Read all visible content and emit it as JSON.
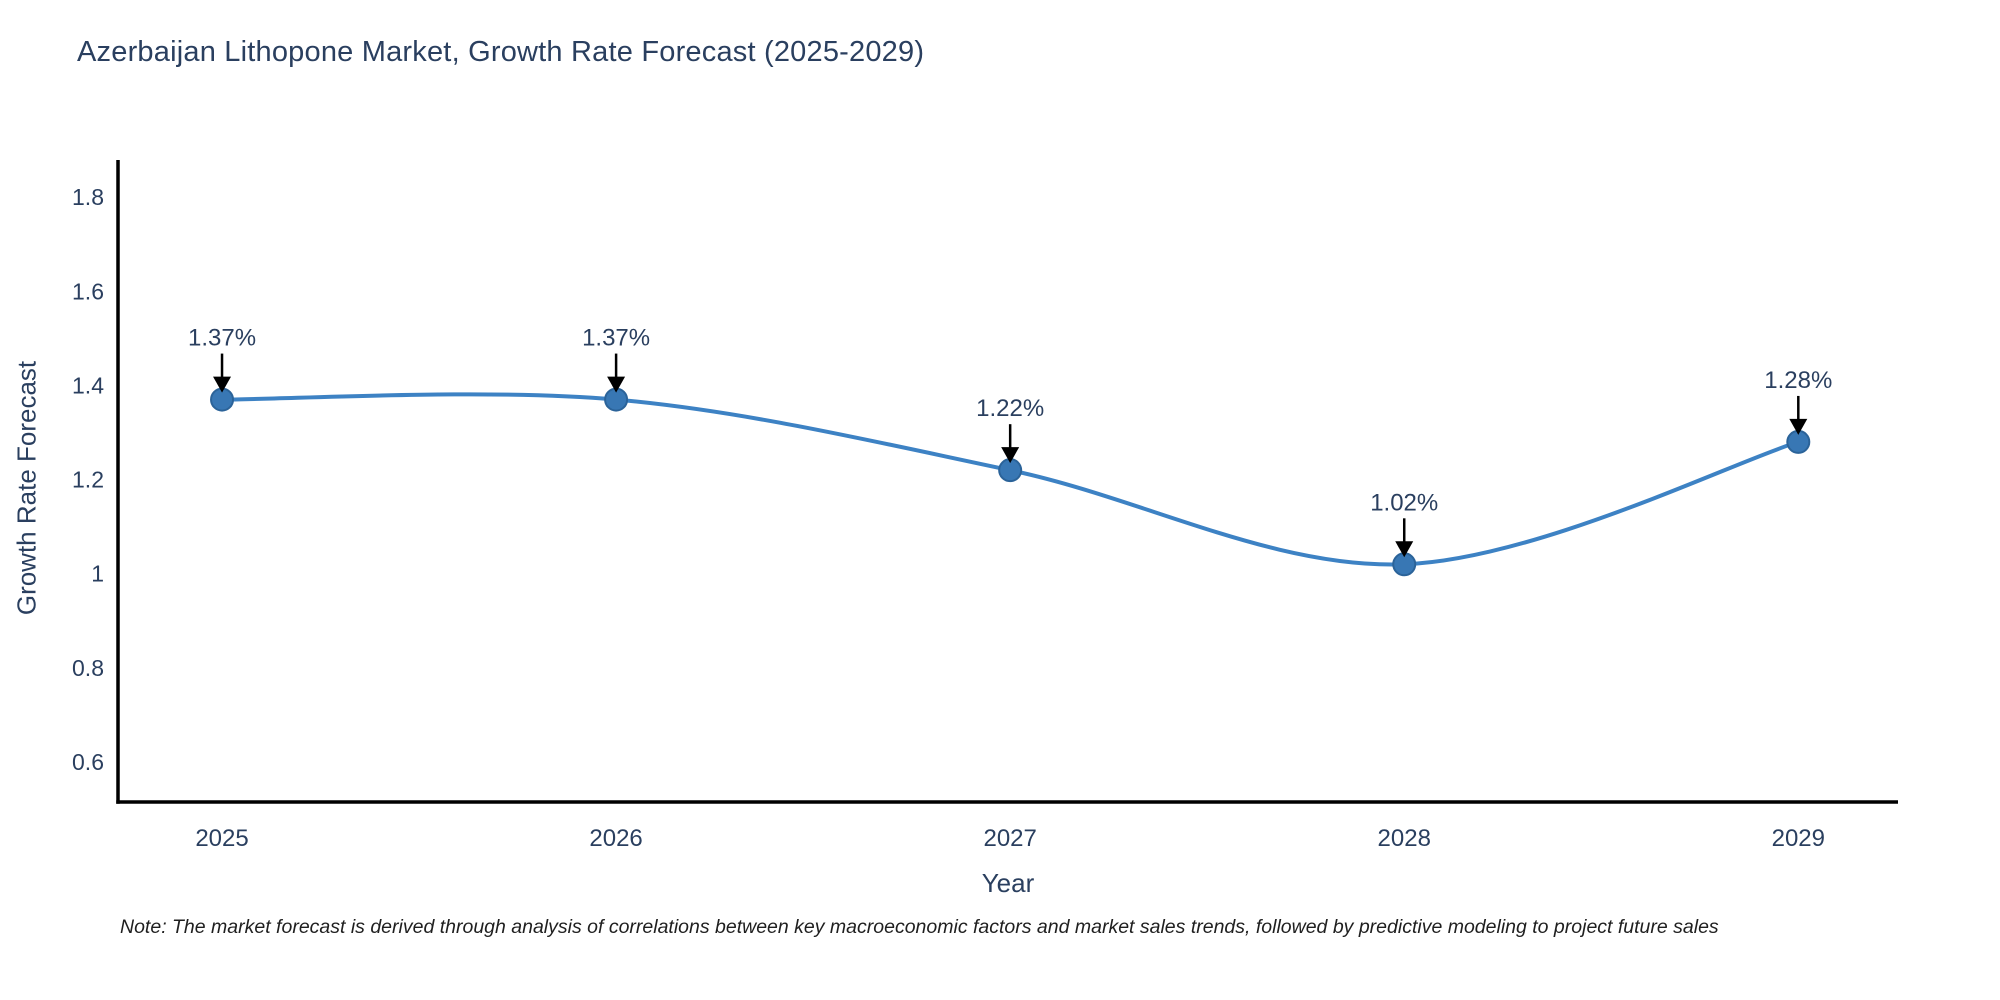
{
  "title": "Azerbaijan Lithopone Market, Growth Rate Forecast (2025-2029)",
  "note": "Note: The market forecast is derived through analysis of correlations between key macroeconomic factors and market sales trends, followed by predictive modeling to project future sales",
  "chart_data": {
    "type": "line",
    "title": "Azerbaijan Lithopone Market, Growth Rate Forecast (2025-2029)",
    "xlabel": "Year",
    "ylabel": "Growth Rate Forecast",
    "categories": [
      2025,
      2026,
      2027,
      2028,
      2029
    ],
    "values": [
      1.37,
      1.37,
      1.22,
      1.02,
      1.28
    ],
    "annotations": [
      "1.37%",
      "1.37%",
      "1.22%",
      "1.02%",
      "1.28%"
    ],
    "yticks": [
      "1.8",
      "1.6",
      "1.4",
      "1.2",
      "1",
      "0.8",
      "0.6"
    ],
    "ytick_values": [
      1.8,
      1.6,
      1.4,
      1.2,
      1.0,
      0.8,
      0.6
    ],
    "ylim": [
      0.515,
      1.879
    ],
    "xlim": [
      2024.736,
      2029.253
    ],
    "line_shape": "spline",
    "grid": false,
    "legend": "none",
    "colors": {
      "line": "#3d82c4",
      "marker": "#3877b4",
      "marker_edge": "#2b6399",
      "axis": "#000000",
      "text": "#2a3f5f",
      "arrow": "#000000"
    }
  }
}
